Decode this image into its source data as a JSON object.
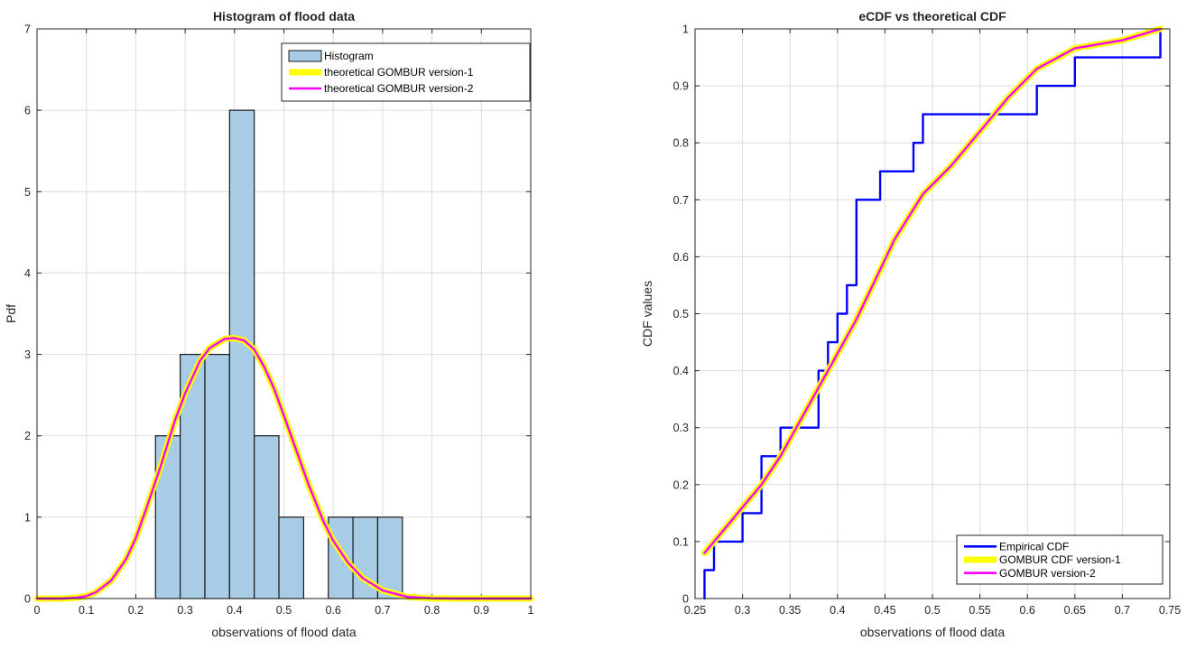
{
  "chart_data": [
    {
      "type": "bar",
      "title": "Histogram of flood data",
      "xlabel": "observations of flood data",
      "ylabel": "Pdf",
      "xlim": [
        0,
        1
      ],
      "ylim": [
        0,
        7
      ],
      "xticks": [
        "0",
        "0.1",
        "0.2",
        "0.3",
        "0.4",
        "0.5",
        "0.6",
        "0.7",
        "0.8",
        "0.9",
        "1"
      ],
      "yticks": [
        "0",
        "1",
        "2",
        "3",
        "4",
        "5",
        "6",
        "7"
      ],
      "grid": true,
      "legend_position": "top-right",
      "histogram": {
        "name": "Histogram",
        "bin_edges": [
          0.24,
          0.29,
          0.34,
          0.39,
          0.44,
          0.49,
          0.54,
          0.59,
          0.64,
          0.69,
          0.74
        ],
        "values": [
          2,
          3,
          3,
          6,
          2,
          1,
          0,
          1,
          1,
          1
        ],
        "color": "#a9cce6",
        "edge_color": "#1a1a1a"
      },
      "series": [
        {
          "name": "theoretical GOMBUR version-1",
          "color": "#ffff00",
          "x": [
            0,
            0.05,
            0.08,
            0.1,
            0.12,
            0.15,
            0.18,
            0.2,
            0.22,
            0.25,
            0.28,
            0.3,
            0.33,
            0.35,
            0.38,
            0.4,
            0.42,
            0.44,
            0.46,
            0.48,
            0.5,
            0.52,
            0.55,
            0.58,
            0.6,
            0.63,
            0.66,
            0.7,
            0.75,
            0.8,
            0.85,
            0.9,
            1
          ],
          "y": [
            0,
            0,
            0.01,
            0.03,
            0.08,
            0.22,
            0.48,
            0.74,
            1.08,
            1.62,
            2.2,
            2.52,
            2.92,
            3.08,
            3.19,
            3.2,
            3.17,
            3.06,
            2.85,
            2.58,
            2.25,
            1.91,
            1.4,
            0.95,
            0.71,
            0.44,
            0.25,
            0.1,
            0.02,
            0.003,
            0,
            0,
            0
          ]
        },
        {
          "name": "theoretical GOMBUR version-2",
          "color": "#ff00ff",
          "x": [
            0,
            0.05,
            0.08,
            0.1,
            0.12,
            0.15,
            0.18,
            0.2,
            0.22,
            0.25,
            0.28,
            0.3,
            0.33,
            0.35,
            0.38,
            0.4,
            0.42,
            0.44,
            0.46,
            0.48,
            0.5,
            0.52,
            0.55,
            0.58,
            0.6,
            0.63,
            0.66,
            0.7,
            0.75,
            0.8,
            0.85,
            0.9,
            1
          ],
          "y": [
            0,
            0,
            0.01,
            0.03,
            0.08,
            0.22,
            0.48,
            0.74,
            1.08,
            1.62,
            2.2,
            2.52,
            2.92,
            3.08,
            3.19,
            3.2,
            3.17,
            3.06,
            2.85,
            2.58,
            2.25,
            1.91,
            1.4,
            0.95,
            0.71,
            0.44,
            0.25,
            0.1,
            0.02,
            0.003,
            0,
            0,
            0
          ]
        }
      ]
    },
    {
      "type": "line",
      "title": "eCDF vs theoretical CDF",
      "xlabel": "observations of flood data",
      "ylabel": "CDF values",
      "xlim": [
        0.25,
        0.75
      ],
      "ylim": [
        0,
        1
      ],
      "xticks": [
        "0.25",
        "0.3",
        "0.35",
        "0.4",
        "0.45",
        "0.5",
        "0.55",
        "0.6",
        "0.65",
        "0.7",
        "0.75"
      ],
      "yticks": [
        "0",
        "0.1",
        "0.2",
        "0.3",
        "0.4",
        "0.5",
        "0.6",
        "0.7",
        "0.8",
        "0.9",
        "1"
      ],
      "grid": true,
      "legend_position": "bottom-right",
      "series": [
        {
          "name": "Empirical CDF",
          "color": "#0000ff",
          "style": "step",
          "x": [
            0.26,
            0.26,
            0.27,
            0.27,
            0.3,
            0.3,
            0.31,
            0.31,
            0.32,
            0.32,
            0.33,
            0.33,
            0.34,
            0.34,
            0.375,
            0.375,
            0.38,
            0.38,
            0.39,
            0.39,
            0.4,
            0.4,
            0.41,
            0.41,
            0.42,
            0.42,
            0.445,
            0.445,
            0.47,
            0.47,
            0.48,
            0.48,
            0.49,
            0.49,
            0.61,
            0.61,
            0.65,
            0.65,
            0.74,
            0.74
          ],
          "y": [
            0,
            0.05,
            0.05,
            0.1,
            0.1,
            0.15,
            0.15,
            0.15,
            0.15,
            0.25,
            0.25,
            0.25,
            0.25,
            0.3,
            0.3,
            0.3,
            0.3,
            0.4,
            0.4,
            0.45,
            0.45,
            0.5,
            0.5,
            0.55,
            0.55,
            0.7,
            0.7,
            0.75,
            0.75,
            0.75,
            0.75,
            0.8,
            0.8,
            0.85,
            0.85,
            0.9,
            0.9,
            0.95,
            0.95,
            1
          ]
        },
        {
          "name": "GOMBUR CDF version-1",
          "color": "#ffff00",
          "x": [
            0.26,
            0.28,
            0.3,
            0.32,
            0.34,
            0.36,
            0.38,
            0.4,
            0.42,
            0.44,
            0.46,
            0.49,
            0.52,
            0.55,
            0.58,
            0.61,
            0.65,
            0.7,
            0.74
          ],
          "y": [
            0.08,
            0.12,
            0.16,
            0.2,
            0.25,
            0.31,
            0.37,
            0.43,
            0.49,
            0.56,
            0.63,
            0.71,
            0.76,
            0.82,
            0.88,
            0.93,
            0.966,
            0.98,
            1.0
          ]
        },
        {
          "name": "GOMBUR version-2",
          "color": "#ff00ff",
          "x": [
            0.26,
            0.28,
            0.3,
            0.32,
            0.34,
            0.36,
            0.38,
            0.4,
            0.42,
            0.44,
            0.46,
            0.49,
            0.52,
            0.55,
            0.58,
            0.61,
            0.65,
            0.7,
            0.74
          ],
          "y": [
            0.08,
            0.12,
            0.16,
            0.2,
            0.25,
            0.31,
            0.37,
            0.43,
            0.49,
            0.56,
            0.63,
            0.71,
            0.76,
            0.82,
            0.88,
            0.93,
            0.966,
            0.98,
            1.0
          ]
        }
      ]
    }
  ]
}
